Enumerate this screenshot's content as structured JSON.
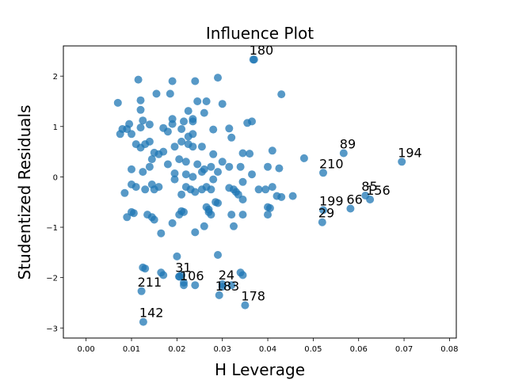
{
  "chart_data": {
    "type": "scatter",
    "title": "Influence Plot",
    "xlabel": "H Leverage",
    "ylabel": "Studentized Residuals",
    "xlim": [
      -0.005,
      0.0815
    ],
    "ylim": [
      -3.2,
      2.6
    ],
    "xticks": [
      "0.00",
      "0.01",
      "0.02",
      "0.03",
      "0.04",
      "0.05",
      "0.06",
      "0.07",
      "0.08"
    ],
    "xtick_values": [
      0.0,
      0.01,
      0.02,
      0.03,
      0.04,
      0.05,
      0.06,
      0.07,
      0.08
    ],
    "yticks": [
      "−3",
      "−2",
      "−1",
      "0",
      "1",
      "2"
    ],
    "ytick_values": [
      -3,
      -2,
      -1,
      0,
      1,
      2
    ],
    "grid": false,
    "marker_color": "#1f77b4",
    "points": [
      [
        0.007,
        1.47
      ],
      [
        0.0115,
        1.93
      ],
      [
        0.019,
        1.9
      ],
      [
        0.024,
        1.9
      ],
      [
        0.029,
        1.97
      ],
      [
        0.0155,
        1.65
      ],
      [
        0.0185,
        1.65
      ],
      [
        0.012,
        1.52
      ],
      [
        0.012,
        1.33
      ],
      [
        0.0245,
        1.5
      ],
      [
        0.0265,
        1.5
      ],
      [
        0.03,
        1.45
      ],
      [
        0.0225,
        1.31
      ],
      [
        0.019,
        1.15
      ],
      [
        0.0235,
        1.15
      ],
      [
        0.026,
        1.27
      ],
      [
        0.021,
        0.95
      ],
      [
        0.0215,
        1.1
      ],
      [
        0.0235,
        1.1
      ],
      [
        0.0355,
        1.07
      ],
      [
        0.0365,
        1.1
      ],
      [
        0.043,
        1.64
      ],
      [
        0.037,
        2.33
      ],
      [
        0.028,
        0.94
      ],
      [
        0.0315,
        0.96
      ],
      [
        0.032,
        0.78
      ],
      [
        0.008,
        0.95
      ],
      [
        0.009,
        0.95
      ],
      [
        0.0095,
        1.05
      ],
      [
        0.01,
        0.85
      ],
      [
        0.0075,
        0.85
      ],
      [
        0.012,
        0.98
      ],
      [
        0.0125,
        1.12
      ],
      [
        0.014,
        1.04
      ],
      [
        0.017,
        0.97
      ],
      [
        0.019,
        1.05
      ],
      [
        0.018,
        0.9
      ],
      [
        0.0225,
        0.8
      ],
      [
        0.0235,
        0.85
      ],
      [
        0.011,
        0.65
      ],
      [
        0.012,
        0.58
      ],
      [
        0.013,
        0.65
      ],
      [
        0.014,
        0.7
      ],
      [
        0.015,
        0.48
      ],
      [
        0.016,
        0.45
      ],
      [
        0.017,
        0.5
      ],
      [
        0.0195,
        0.6
      ],
      [
        0.021,
        0.7
      ],
      [
        0.0225,
        0.65
      ],
      [
        0.0235,
        0.6
      ],
      [
        0.0255,
        0.6
      ],
      [
        0.028,
        0.45
      ],
      [
        0.03,
        0.3
      ],
      [
        0.0345,
        0.47
      ],
      [
        0.036,
        0.46
      ],
      [
        0.041,
        0.52
      ],
      [
        0.048,
        0.37
      ],
      [
        0.01,
        0.15
      ],
      [
        0.0125,
        0.1
      ],
      [
        0.0145,
        0.35
      ],
      [
        0.014,
        0.2
      ],
      [
        0.018,
        0.25
      ],
      [
        0.0195,
        0.07
      ],
      [
        0.0205,
        0.35
      ],
      [
        0.022,
        0.3
      ],
      [
        0.022,
        0.05
      ],
      [
        0.0235,
        0.0
      ],
      [
        0.0245,
        0.25
      ],
      [
        0.0255,
        0.1
      ],
      [
        0.026,
        0.15
      ],
      [
        0.0275,
        0.2
      ],
      [
        0.028,
        -0.05
      ],
      [
        0.029,
        0.1
      ],
      [
        0.0315,
        0.2
      ],
      [
        0.034,
        0.2
      ],
      [
        0.0345,
        -0.1
      ],
      [
        0.0365,
        0.05
      ],
      [
        0.04,
        0.2
      ],
      [
        0.0425,
        0.17
      ],
      [
        0.0085,
        -0.32
      ],
      [
        0.01,
        -0.15
      ],
      [
        0.011,
        -0.2
      ],
      [
        0.013,
        -0.25
      ],
      [
        0.0145,
        -0.15
      ],
      [
        0.015,
        -0.25
      ],
      [
        0.016,
        -0.2
      ],
      [
        0.0195,
        -0.05
      ],
      [
        0.021,
        -0.35
      ],
      [
        0.022,
        -0.2
      ],
      [
        0.023,
        -0.25
      ],
      [
        0.024,
        -0.3
      ],
      [
        0.0255,
        -0.25
      ],
      [
        0.0265,
        -0.2
      ],
      [
        0.0275,
        -0.25
      ],
      [
        0.0285,
        -0.5
      ],
      [
        0.029,
        -0.52
      ],
      [
        0.0315,
        -0.22
      ],
      [
        0.0325,
        -0.25
      ],
      [
        0.033,
        -0.3
      ],
      [
        0.0335,
        -0.35
      ],
      [
        0.0345,
        -0.45
      ],
      [
        0.038,
        -0.25
      ],
      [
        0.0395,
        -0.25
      ],
      [
        0.041,
        -0.2
      ],
      [
        0.042,
        -0.38
      ],
      [
        0.043,
        -0.4
      ],
      [
        0.0455,
        -0.38
      ],
      [
        0.04,
        -0.6
      ],
      [
        0.0405,
        -0.62
      ],
      [
        0.009,
        -0.8
      ],
      [
        0.01,
        -0.7
      ],
      [
        0.0105,
        -0.72
      ],
      [
        0.0135,
        -0.75
      ],
      [
        0.0145,
        -0.8
      ],
      [
        0.015,
        -0.85
      ],
      [
        0.0165,
        -1.12
      ],
      [
        0.019,
        -0.92
      ],
      [
        0.0205,
        -0.75
      ],
      [
        0.021,
        -0.68
      ],
      [
        0.0215,
        -0.7
      ],
      [
        0.024,
        -1.1
      ],
      [
        0.026,
        -0.98
      ],
      [
        0.0265,
        -0.6
      ],
      [
        0.027,
        -0.65
      ],
      [
        0.027,
        -0.7
      ],
      [
        0.0275,
        -0.75
      ],
      [
        0.032,
        -0.75
      ],
      [
        0.0325,
        -0.98
      ],
      [
        0.0345,
        -0.75
      ],
      [
        0.04,
        -0.75
      ],
      [
        0.02,
        -1.58
      ],
      [
        0.029,
        -1.55
      ],
      [
        0.0205,
        -1.98
      ],
      [
        0.021,
        -1.95
      ],
      [
        0.0215,
        -2.1
      ],
      [
        0.03,
        -2.18
      ],
      [
        0.034,
        -1.9
      ],
      [
        0.0345,
        -1.95
      ],
      [
        0.0125,
        -1.8
      ],
      [
        0.013,
        -1.82
      ],
      [
        0.0165,
        -1.9
      ],
      [
        0.017,
        -1.95
      ],
      [
        0.032,
        -2.15
      ],
      [
        0.024,
        -2.15
      ]
    ],
    "labeled_points": [
      {
        "label": "180",
        "x": 0.0368,
        "y": 2.33
      },
      {
        "label": "89",
        "x": 0.0567,
        "y": 0.47
      },
      {
        "label": "194",
        "x": 0.0695,
        "y": 0.3
      },
      {
        "label": "210",
        "x": 0.0522,
        "y": 0.08
      },
      {
        "label": "85",
        "x": 0.0615,
        "y": -0.37
      },
      {
        "label": "156",
        "x": 0.0625,
        "y": -0.45
      },
      {
        "label": "199",
        "x": 0.0522,
        "y": -0.66
      },
      {
        "label": "66",
        "x": 0.0582,
        "y": -0.63
      },
      {
        "label": "29",
        "x": 0.052,
        "y": -0.9
      },
      {
        "label": "31",
        "x": 0.0205,
        "y": -1.98
      },
      {
        "label": "106",
        "x": 0.0215,
        "y": -2.15
      },
      {
        "label": "24",
        "x": 0.03,
        "y": -2.13
      },
      {
        "label": "211",
        "x": 0.0122,
        "y": -2.27
      },
      {
        "label": "183",
        "x": 0.0293,
        "y": -2.35
      },
      {
        "label": "178",
        "x": 0.035,
        "y": -2.55
      },
      {
        "label": "142",
        "x": 0.0126,
        "y": -2.88
      }
    ]
  }
}
